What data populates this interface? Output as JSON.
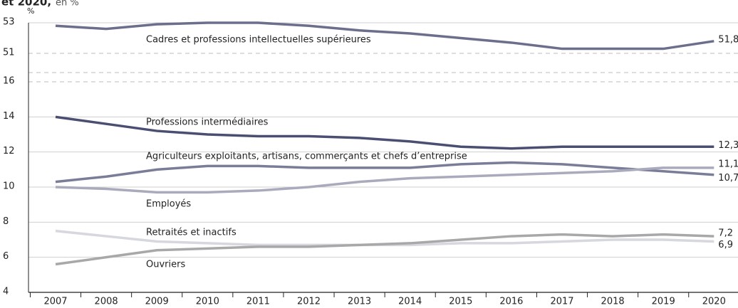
{
  "chart_data": {
    "type": "line",
    "title": "et 2020,",
    "subtitle": "en %",
    "y_label": "%",
    "x": [
      2007,
      2008,
      2009,
      2010,
      2011,
      2012,
      2013,
      2014,
      2015,
      2016,
      2017,
      2018,
      2019,
      2020
    ],
    "ylim": [
      4,
      16
    ],
    "yticks": [
      4,
      6,
      8,
      10,
      12,
      14,
      16
    ],
    "y2lim": [
      51,
      53
    ],
    "y2ticks": [
      51,
      53
    ],
    "grid": true,
    "series": [
      {
        "name": "Cadres et professions intellectuelles supérieures",
        "color": "#6b6f8c",
        "axis": "y2",
        "values": [
          52.8,
          52.6,
          52.9,
          53.0,
          53.0,
          52.8,
          52.5,
          52.3,
          52.0,
          51.7,
          51.3,
          51.3,
          51.3,
          51.8
        ],
        "value_labels": [
          null,
          null,
          null,
          null,
          null,
          null,
          null,
          null,
          null,
          null,
          null,
          null,
          null,
          "51,8"
        ]
      },
      {
        "name": "Professions intermédiaires",
        "color": "#4a4f72",
        "values": [
          14.0,
          13.6,
          13.2,
          13.0,
          12.9,
          12.9,
          12.8,
          12.6,
          12.3,
          12.2,
          12.3,
          12.3,
          12.3,
          12.3
        ],
        "value_labels": [
          null,
          null,
          null,
          null,
          null,
          null,
          null,
          null,
          null,
          null,
          null,
          null,
          null,
          "12,3"
        ]
      },
      {
        "name": "Agriculteurs exploitants, artisans, commerçants et chefs d’entreprise",
        "color": "#7a7d97",
        "values": [
          10.3,
          10.6,
          11.0,
          11.2,
          11.2,
          11.1,
          11.1,
          11.1,
          11.3,
          11.4,
          11.3,
          11.1,
          10.9,
          10.7
        ],
        "value_labels": [
          null,
          null,
          null,
          null,
          null,
          null,
          null,
          null,
          null,
          null,
          null,
          null,
          null,
          "10,7"
        ]
      },
      {
        "name": "Employés",
        "color": "#a9abbd",
        "values": [
          10.0,
          9.9,
          9.7,
          9.7,
          9.8,
          10.0,
          10.3,
          10.5,
          10.6,
          10.7,
          10.8,
          10.9,
          11.1,
          11.1
        ],
        "value_labels": [
          null,
          null,
          null,
          null,
          null,
          null,
          null,
          null,
          null,
          null,
          null,
          null,
          null,
          "11,1"
        ]
      },
      {
        "name": "Retraités et inactifs",
        "color": "#d6d7df",
        "values": [
          7.5,
          7.2,
          6.9,
          6.8,
          6.7,
          6.7,
          6.7,
          6.7,
          6.8,
          6.8,
          6.9,
          7.0,
          7.0,
          6.9
        ],
        "value_labels": [
          null,
          null,
          null,
          null,
          null,
          null,
          null,
          null,
          null,
          null,
          null,
          null,
          null,
          "6,9"
        ]
      },
      {
        "name": "Ouvriers",
        "color": "#a8a8a8",
        "values": [
          5.6,
          6.0,
          6.4,
          6.5,
          6.6,
          6.6,
          6.7,
          6.8,
          7.0,
          7.2,
          7.3,
          7.2,
          7.3,
          7.2
        ],
        "value_labels": [
          null,
          null,
          null,
          null,
          null,
          null,
          null,
          null,
          null,
          null,
          null,
          null,
          null,
          "7,2"
        ]
      }
    ]
  }
}
